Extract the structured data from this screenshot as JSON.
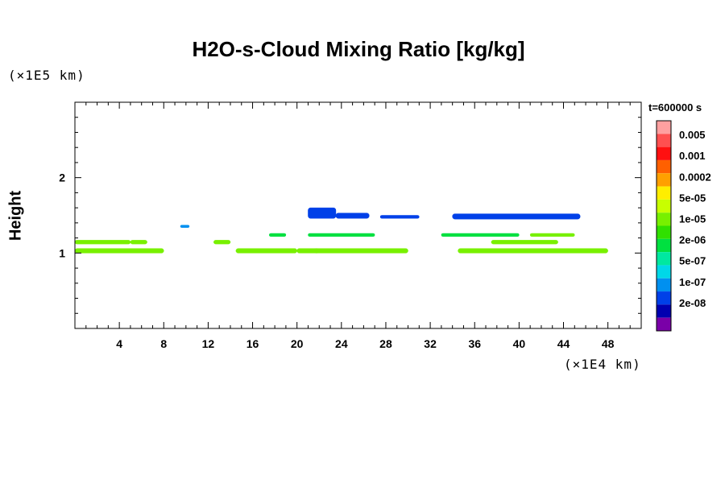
{
  "chart_data": {
    "type": "heatmap",
    "title": "H2O-s-Cloud Mixing Ratio [kg/kg]",
    "xlabel": "",
    "ylabel": "Height",
    "x_scale_note": "(×1E4 km)",
    "y_scale_note": "(×1E5 km)",
    "time_label": "t=600000 s",
    "xlim": [
      0,
      51
    ],
    "ylim": [
      0,
      3
    ],
    "x_ticks": [
      4,
      8,
      12,
      16,
      20,
      24,
      28,
      32,
      36,
      40,
      44,
      48
    ],
    "y_ticks": [
      1,
      2
    ],
    "legend": {
      "colors": [
        "#ffa0a0",
        "#ff5050",
        "#ff1010",
        "#ff6000",
        "#ffa000",
        "#ffee00",
        "#c8ff00",
        "#78f000",
        "#30e000",
        "#00e040",
        "#00e8a0",
        "#00d8e8",
        "#0090f0",
        "#0040e8",
        "#0000b0",
        "#7a00a8"
      ],
      "labels": [
        "0.005",
        "0.001",
        "0.0002",
        "5e-05",
        "1e-05",
        "2e-06",
        "5e-07",
        "1e-07",
        "2e-08"
      ]
    },
    "regions": [
      {
        "x": [
          0.0,
          8.0
        ],
        "y": [
          1.0,
          1.06
        ],
        "level": "5e-05"
      },
      {
        "x": [
          0.0,
          5.0
        ],
        "y": [
          1.12,
          1.17
        ],
        "level": "5e-05"
      },
      {
        "x": [
          5.0,
          6.5
        ],
        "y": [
          1.12,
          1.17
        ],
        "level": "5e-05"
      },
      {
        "x": [
          12.5,
          14.0
        ],
        "y": [
          1.12,
          1.17
        ],
        "level": "5e-05"
      },
      {
        "x": [
          14.5,
          20.0
        ],
        "y": [
          1.0,
          1.06
        ],
        "level": "5e-05"
      },
      {
        "x": [
          20.0,
          22.0
        ],
        "y": [
          1.0,
          1.06
        ],
        "level": "5e-05"
      },
      {
        "x": [
          21.5,
          30.0
        ],
        "y": [
          1.0,
          1.06
        ],
        "level": "5e-05"
      },
      {
        "x": [
          17.5,
          19.0
        ],
        "y": [
          1.22,
          1.26
        ],
        "level": "1e-05"
      },
      {
        "x": [
          21.0,
          27.0
        ],
        "y": [
          1.22,
          1.26
        ],
        "level": "1e-05"
      },
      {
        "x": [
          33.0,
          40.0
        ],
        "y": [
          1.22,
          1.26
        ],
        "level": "1e-05"
      },
      {
        "x": [
          41.0,
          45.0
        ],
        "y": [
          1.22,
          1.26
        ],
        "level": "5e-05"
      },
      {
        "x": [
          34.5,
          48.0
        ],
        "y": [
          1.0,
          1.06
        ],
        "level": "5e-05"
      },
      {
        "x": [
          37.5,
          43.5
        ],
        "y": [
          1.12,
          1.17
        ],
        "level": "5e-05"
      },
      {
        "x": [
          9.5,
          10.3
        ],
        "y": [
          1.34,
          1.37
        ],
        "level": "5e-07"
      },
      {
        "x": [
          21.0,
          23.5
        ],
        "y": [
          1.46,
          1.6
        ],
        "level": "1e-07"
      },
      {
        "x": [
          23.5,
          26.5
        ],
        "y": [
          1.46,
          1.53
        ],
        "level": "1e-07"
      },
      {
        "x": [
          27.5,
          31.0
        ],
        "y": [
          1.46,
          1.5
        ],
        "level": "1e-07"
      },
      {
        "x": [
          34.0,
          45.5
        ],
        "y": [
          1.45,
          1.52
        ],
        "level": "1e-07"
      }
    ]
  }
}
